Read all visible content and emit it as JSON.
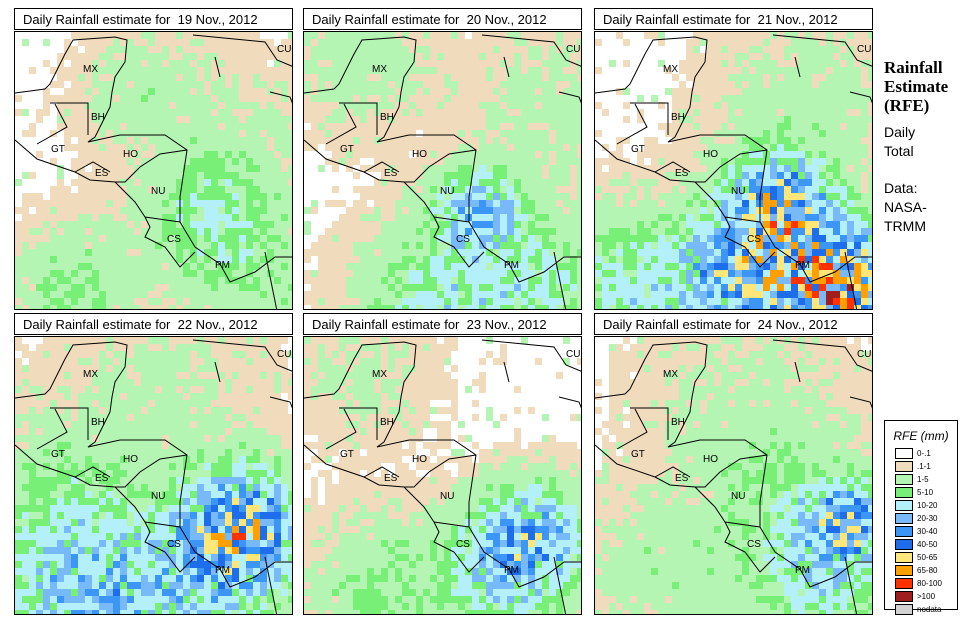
{
  "panels": [
    {
      "title": "Daily Rainfall estimate for  19 Nov., 2012"
    },
    {
      "title": "Daily Rainfall estimate for  20 Nov., 2012"
    },
    {
      "title": "Daily Rainfall estimate for  21 Nov., 2012"
    },
    {
      "title": "Daily Rainfall estimate for  22 Nov., 2012"
    },
    {
      "title": "Daily Rainfall estimate for  23 Nov., 2012"
    },
    {
      "title": "Daily Rainfall estimate for  24 Nov., 2012"
    }
  ],
  "country_labels": [
    "MX",
    "BH",
    "GT",
    "HO",
    "ES",
    "NU",
    "CS",
    "PM",
    "CU"
  ],
  "side": {
    "title1": "Rainfall",
    "title2": "Estimate",
    "title3": "(RFE)",
    "period1": "Daily",
    "period2": "Total",
    "source1": "Data:",
    "source2": "NASA-",
    "source3": "TRMM"
  },
  "legend": {
    "title": "RFE (mm)",
    "items": [
      {
        "label": "0-.1",
        "color": "#ffffff"
      },
      {
        "label": ".1-1",
        "color": "#f0dcbc"
      },
      {
        "label": "1-5",
        "color": "#b4f5b4"
      },
      {
        "label": "5-10",
        "color": "#78f078"
      },
      {
        "label": "10-20",
        "color": "#b4f0fa"
      },
      {
        "label": "20-30",
        "color": "#78b9fa"
      },
      {
        "label": "30-40",
        "color": "#3c96f5"
      },
      {
        "label": "40-50",
        "color": "#1e6eeb"
      },
      {
        "label": "50-65",
        "color": "#ffe678"
      },
      {
        "label": "65-80",
        "color": "#ffa000"
      },
      {
        "label": "80-100",
        "color": "#ff3200"
      },
      {
        "label": ">100",
        "color": "#a01e1e"
      },
      {
        "label": "nodata",
        "color": "#d2d2d2"
      }
    ]
  }
}
